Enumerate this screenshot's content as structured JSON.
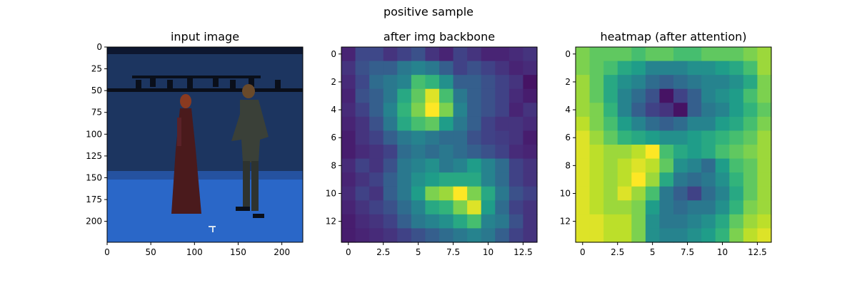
{
  "figure": {
    "suptitle": "positive sample"
  },
  "colormap": [
    "#440154",
    "#482878",
    "#3e4989",
    "#31688e",
    "#26828e",
    "#1f9e89",
    "#35b779",
    "#6ece58",
    "#b5de2b",
    "#fde725"
  ],
  "chart_data": [
    {
      "type": "image",
      "title": "input image",
      "xlim": [
        0,
        224
      ],
      "ylim": [
        224,
        0
      ],
      "xticks": [
        0,
        50,
        100,
        150,
        200
      ],
      "yticks": [
        0,
        25,
        50,
        75,
        100,
        125,
        150,
        175,
        200
      ],
      "scene_colors": {
        "backdrop": "#1c3560",
        "floor": "#2a67c8",
        "rig": "#0a0f1a",
        "woman_dress": "#4a1a1c",
        "woman_hair": "#8a3a20",
        "man_clothes": "#3a4038",
        "man_hair": "#6a4a2a"
      }
    },
    {
      "type": "heatmap",
      "title": "after img backbone",
      "xlim": [
        -0.5,
        13.5
      ],
      "ylim": [
        13.5,
        -0.5
      ],
      "xticks": [
        0.0,
        2.5,
        5.0,
        7.5,
        10.0,
        12.5
      ],
      "yticks": [
        0,
        2,
        4,
        6,
        8,
        10,
        12
      ],
      "values": [
        [
          0.1,
          0.22,
          0.22,
          0.15,
          0.2,
          0.25,
          0.15,
          0.1,
          0.2,
          0.15,
          0.1,
          0.1,
          0.12,
          0.15
        ],
        [
          0.15,
          0.25,
          0.3,
          0.3,
          0.4,
          0.45,
          0.4,
          0.3,
          0.2,
          0.25,
          0.2,
          0.15,
          0.1,
          0.12
        ],
        [
          0.12,
          0.22,
          0.35,
          0.4,
          0.45,
          0.7,
          0.65,
          0.5,
          0.3,
          0.3,
          0.25,
          0.2,
          0.15,
          0.05
        ],
        [
          0.1,
          0.25,
          0.3,
          0.4,
          0.6,
          0.75,
          0.95,
          0.7,
          0.4,
          0.3,
          0.25,
          0.2,
          0.12,
          0.08
        ],
        [
          0.12,
          0.2,
          0.3,
          0.45,
          0.65,
          0.8,
          1.0,
          0.8,
          0.45,
          0.3,
          0.25,
          0.2,
          0.1,
          0.15
        ],
        [
          0.1,
          0.15,
          0.25,
          0.4,
          0.6,
          0.7,
          0.75,
          0.55,
          0.4,
          0.3,
          0.2,
          0.15,
          0.15,
          0.12
        ],
        [
          0.08,
          0.15,
          0.2,
          0.3,
          0.4,
          0.45,
          0.4,
          0.35,
          0.35,
          0.25,
          0.2,
          0.18,
          0.15,
          0.08
        ],
        [
          0.08,
          0.12,
          0.15,
          0.2,
          0.35,
          0.4,
          0.35,
          0.4,
          0.35,
          0.3,
          0.25,
          0.2,
          0.12,
          0.1
        ],
        [
          0.12,
          0.2,
          0.15,
          0.25,
          0.4,
          0.45,
          0.5,
          0.4,
          0.45,
          0.55,
          0.45,
          0.35,
          0.2,
          0.15
        ],
        [
          0.1,
          0.15,
          0.2,
          0.3,
          0.4,
          0.5,
          0.55,
          0.6,
          0.6,
          0.6,
          0.45,
          0.35,
          0.2,
          0.15
        ],
        [
          0.12,
          0.2,
          0.15,
          0.3,
          0.4,
          0.55,
          0.8,
          0.85,
          1.0,
          0.8,
          0.6,
          0.4,
          0.25,
          0.2
        ],
        [
          0.1,
          0.15,
          0.2,
          0.25,
          0.35,
          0.45,
          0.6,
          0.65,
          0.8,
          0.95,
          0.55,
          0.35,
          0.2,
          0.15
        ],
        [
          0.08,
          0.12,
          0.15,
          0.2,
          0.3,
          0.4,
          0.45,
          0.5,
          0.6,
          0.7,
          0.45,
          0.4,
          0.25,
          0.15
        ],
        [
          0.08,
          0.1,
          0.12,
          0.15,
          0.2,
          0.25,
          0.3,
          0.35,
          0.4,
          0.45,
          0.4,
          0.3,
          0.2,
          0.15
        ]
      ]
    },
    {
      "type": "heatmap",
      "title": "heatmap (after attention)",
      "xlim": [
        -0.5,
        13.5
      ],
      "ylim": [
        13.5,
        -0.5
      ],
      "xticks": [
        0.0,
        2.5,
        5.0,
        7.5,
        10.0,
        12.5
      ],
      "yticks": [
        0,
        2,
        4,
        6,
        8,
        10,
        12
      ],
      "values": [
        [
          0.8,
          0.75,
          0.75,
          0.75,
          0.7,
          0.75,
          0.75,
          0.7,
          0.7,
          0.75,
          0.75,
          0.75,
          0.8,
          0.85
        ],
        [
          0.8,
          0.75,
          0.7,
          0.6,
          0.55,
          0.45,
          0.45,
          0.45,
          0.5,
          0.5,
          0.55,
          0.6,
          0.7,
          0.85
        ],
        [
          0.85,
          0.75,
          0.6,
          0.5,
          0.45,
          0.35,
          0.3,
          0.35,
          0.4,
          0.45,
          0.45,
          0.5,
          0.6,
          0.8
        ],
        [
          0.85,
          0.75,
          0.6,
          0.45,
          0.35,
          0.25,
          0.05,
          0.2,
          0.3,
          0.45,
          0.5,
          0.55,
          0.7,
          0.8
        ],
        [
          0.85,
          0.8,
          0.65,
          0.45,
          0.3,
          0.2,
          0.15,
          0.05,
          0.3,
          0.4,
          0.45,
          0.55,
          0.65,
          0.75
        ],
        [
          0.9,
          0.8,
          0.7,
          0.55,
          0.45,
          0.35,
          0.3,
          0.35,
          0.45,
          0.45,
          0.55,
          0.6,
          0.7,
          0.8
        ],
        [
          0.95,
          0.85,
          0.75,
          0.65,
          0.6,
          0.55,
          0.5,
          0.5,
          0.55,
          0.6,
          0.65,
          0.7,
          0.75,
          0.85
        ],
        [
          0.95,
          0.9,
          0.85,
          0.85,
          0.9,
          1.0,
          0.7,
          0.6,
          0.55,
          0.6,
          0.7,
          0.75,
          0.8,
          0.85
        ],
        [
          0.95,
          0.9,
          0.85,
          0.9,
          0.95,
          0.9,
          0.75,
          0.5,
          0.45,
          0.35,
          0.55,
          0.7,
          0.75,
          0.85
        ],
        [
          0.95,
          0.9,
          0.85,
          0.9,
          1.0,
          0.85,
          0.6,
          0.4,
          0.35,
          0.4,
          0.5,
          0.65,
          0.75,
          0.85
        ],
        [
          0.95,
          0.9,
          0.85,
          0.95,
          0.85,
          0.7,
          0.4,
          0.3,
          0.2,
          0.35,
          0.45,
          0.6,
          0.75,
          0.85
        ],
        [
          0.95,
          0.9,
          0.85,
          0.85,
          0.8,
          0.55,
          0.4,
          0.35,
          0.4,
          0.4,
          0.5,
          0.65,
          0.8,
          0.85
        ],
        [
          0.95,
          0.95,
          0.9,
          0.9,
          0.8,
          0.5,
          0.4,
          0.4,
          0.45,
          0.5,
          0.6,
          0.75,
          0.85,
          0.9
        ],
        [
          0.95,
          0.95,
          0.9,
          0.9,
          0.8,
          0.5,
          0.45,
          0.45,
          0.5,
          0.55,
          0.65,
          0.8,
          0.9,
          0.95
        ]
      ]
    }
  ]
}
